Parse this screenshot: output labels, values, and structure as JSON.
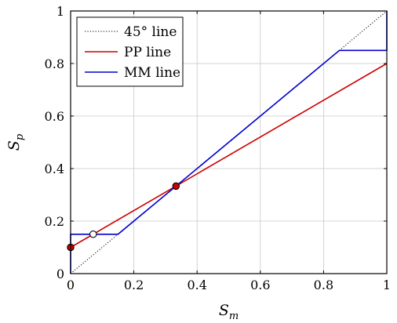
{
  "chart_data": {
    "type": "line",
    "xlabel": "S_m",
    "ylabel": "S_p",
    "xlabel_parts": {
      "base": "S",
      "sub": "m"
    },
    "ylabel_parts": {
      "base": "S",
      "sub": "p"
    },
    "xlim": [
      0,
      1
    ],
    "ylim": [
      0,
      1
    ],
    "xticks": [
      0,
      0.2,
      0.4,
      0.6,
      0.8,
      1
    ],
    "yticks": [
      0,
      0.2,
      0.4,
      0.6,
      0.8,
      1
    ],
    "xtick_labels": [
      "0",
      "0.2",
      "0.4",
      "0.6",
      "0.8",
      "1"
    ],
    "ytick_labels": [
      "0",
      "0.2",
      "0.4",
      "0.6",
      "0.8",
      "1"
    ],
    "grid": true,
    "legend_position": "top-left",
    "series": [
      {
        "name": "45° line",
        "color": "#000000",
        "style": "dotted",
        "x": [
          0,
          1
        ],
        "y": [
          0,
          1
        ]
      },
      {
        "name": "PP line",
        "color": "#cc0000",
        "style": "solid",
        "x": [
          0,
          1
        ],
        "y": [
          0.1,
          0.8
        ]
      },
      {
        "name": "MM line",
        "color": "#0000cc",
        "style": "solid",
        "x": [
          0,
          0,
          0.15,
          0.85,
          1,
          1
        ],
        "y": [
          0,
          0.15,
          0.15,
          0.85,
          0.85,
          1
        ]
      }
    ],
    "markers": [
      {
        "x": 0,
        "y": 0.1,
        "fill": "#cc0000"
      },
      {
        "x": 0.0714,
        "y": 0.15,
        "fill": "#ffffff"
      },
      {
        "x": 0.3333,
        "y": 0.3333,
        "fill": "#cc0000"
      }
    ]
  }
}
